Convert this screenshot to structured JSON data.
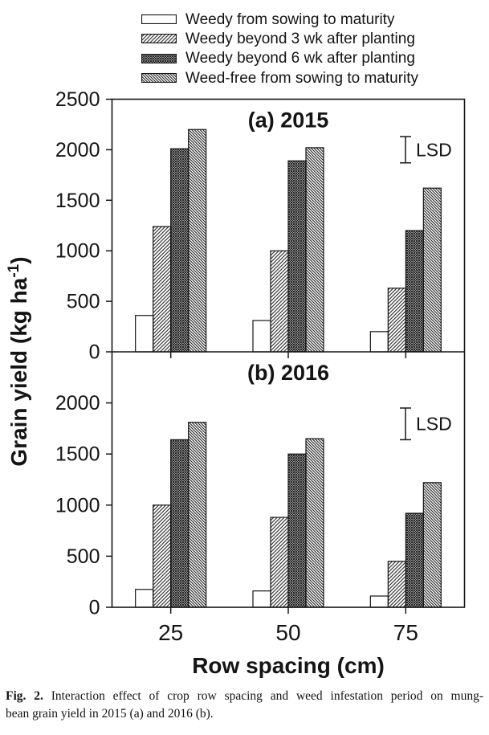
{
  "legend": {
    "items": [
      {
        "label": "Weedy from sowing to maturity",
        "pattern": "plain"
      },
      {
        "label": "Weedy beyond 3 wk after planting",
        "pattern": "forward-hatch"
      },
      {
        "label": "Weedy beyond 6 wk after planting",
        "pattern": "crosshatch"
      },
      {
        "label": "Weed-free from sowing to maturity",
        "pattern": "back-hatch"
      }
    ]
  },
  "chart_data": {
    "type": "bar",
    "categories": [
      "25",
      "50",
      "75"
    ],
    "xlabel": "Row spacing (cm)",
    "ylabel": {
      "text": "Grain yield (kg ha",
      "superscript": "-1",
      "suffix": ")"
    },
    "grid": false,
    "legend_position": "top",
    "bar_outline_color": "#161616",
    "panels": [
      {
        "title": "(a) 2015",
        "ylim": [
          0,
          2500
        ],
        "yticks": [
          0,
          500,
          1000,
          1500,
          2000,
          2500
        ],
        "series": [
          {
            "name": "Weedy from sowing to maturity",
            "values": [
              360,
              310,
              200
            ]
          },
          {
            "name": "Weedy beyond 3 wk after planting",
            "values": [
              1240,
              1000,
              630
            ]
          },
          {
            "name": "Weedy beyond 6 wk after planting",
            "values": [
              2010,
              1890,
              1200
            ]
          },
          {
            "name": "Weed-free from sowing to maturity",
            "values": [
              2200,
              2020,
              1620
            ]
          }
        ],
        "lsd": {
          "label": "LSD",
          "from": 1870,
          "to": 2130
        }
      },
      {
        "title": "(b) 2016",
        "ylim": [
          0,
          2500
        ],
        "yticks": [
          0,
          500,
          1000,
          1500,
          2000
        ],
        "series": [
          {
            "name": "Weedy from sowing to maturity",
            "values": [
              175,
              160,
              110
            ]
          },
          {
            "name": "Weedy beyond 3 wk after planting",
            "values": [
              1000,
              880,
              450
            ]
          },
          {
            "name": "Weedy beyond 6 wk after planting",
            "values": [
              1640,
              1500,
              920
            ]
          },
          {
            "name": "Weed-free from sowing to maturity",
            "values": [
              1810,
              1650,
              1220
            ]
          }
        ],
        "lsd": {
          "label": "LSD",
          "from": 1640,
          "to": 1950
        }
      }
    ]
  },
  "caption": {
    "label": "Fig. 2.",
    "line1": "Interaction effect of crop row spacing and weed infestation period on mung-",
    "line2": "bean grain yield in 2015 (a) and 2016 (b)."
  }
}
